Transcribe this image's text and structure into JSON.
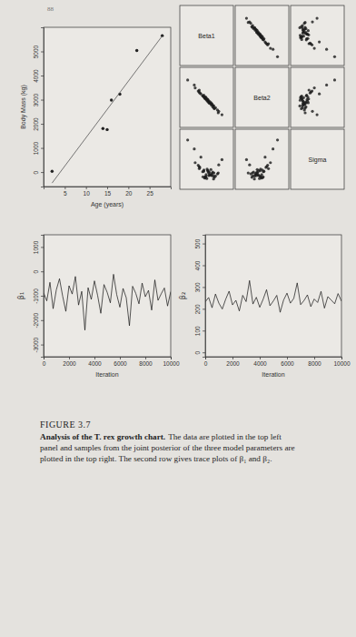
{
  "page_number": "88",
  "chart_data": [
    {
      "type": "scatter",
      "x_label": "Age (years)",
      "y_label": "Body Mass (kg)",
      "xlim": [
        0,
        30
      ],
      "ylim": [
        -600,
        6000
      ],
      "xticks": [
        5,
        10,
        15,
        20,
        25
      ],
      "yticks": [
        0,
        1000,
        2000,
        3000,
        4000,
        5000
      ],
      "series": [
        {
          "type": "scatter",
          "marker": "circle",
          "color": "#222222",
          "x": [
            2,
            14,
            15,
            16,
            18,
            22,
            28
          ],
          "values": [
            29.9,
            1807,
            1761,
            2984,
            3230,
            5040,
            5654
          ]
        },
        {
          "type": "line",
          "line_style": "solid",
          "color": "#555555",
          "x": [
            2,
            28
          ],
          "values": [
            -454,
            5643
          ]
        }
      ]
    },
    {
      "type": "scatter_matrix",
      "tick_labels": false,
      "color": "#1a1a1a",
      "marker": "circle",
      "variables": [
        {
          "name": "Beta1",
          "lim": [
            -2500,
            500
          ],
          "samples": [
            -880,
            -1220,
            -610,
            -1420,
            -390,
            -1080,
            -760,
            -1640,
            -350,
            -1070,
            -740,
            -930,
            -1320,
            -500,
            -900,
            -1410,
            -1110,
            -320,
            -830,
            -1160,
            -1040,
            -660,
            -1690,
            -820,
            -560,
            -1150,
            -690,
            -1380,
            -990,
            -140,
            -1030,
            -850,
            -1470,
            -620,
            -940,
            -1200,
            -590,
            -970,
            -720,
            -2060
          ]
        },
        {
          "name": "Beta2",
          "lim": [
            150,
            340
          ],
          "samples": [
            234,
            250,
            218,
            262,
            205,
            241,
            228,
            275,
            196,
            247,
            221,
            238,
            256,
            212,
            230,
            268,
            243,
            201,
            226,
            252,
            239,
            215,
            284,
            231,
            209,
            246,
            223,
            259,
            236,
            190,
            244,
            227,
            265,
            219,
            233,
            249,
            211,
            240,
            225,
            300
          ]
        },
        {
          "name": "Sigma",
          "lim": [
            300,
            1700
          ],
          "samples": [
            620,
            710,
            540,
            830,
            660,
            590,
            760,
            920,
            680,
            570,
            640,
            730,
            1050,
            610,
            690,
            780,
            560,
            870,
            650,
            720,
            600,
            700,
            1240,
            630,
            580,
            750,
            670,
            810,
            550,
            990,
            640,
            700,
            860,
            610,
            740,
            590,
            680,
            770,
            620,
            1450
          ]
        }
      ]
    },
    {
      "type": "line",
      "x_label": "Iteration",
      "y_label": "β₁",
      "color": "#111111",
      "xlim": [
        0,
        10000
      ],
      "ylim": [
        -3500,
        1500
      ],
      "xticks": [
        0,
        2000,
        4000,
        6000,
        8000,
        10000
      ],
      "yticks": [
        -3000,
        -2000,
        -1000,
        0,
        1000
      ],
      "x": [
        0,
        250,
        500,
        750,
        1000,
        1250,
        1500,
        1750,
        2000,
        2250,
        2500,
        2750,
        3000,
        3250,
        3500,
        3750,
        4000,
        4250,
        4500,
        4750,
        5000,
        5250,
        5500,
        5750,
        6000,
        6250,
        6500,
        6750,
        7000,
        7250,
        7500,
        7750,
        8000,
        8250,
        8500,
        8750,
        9000,
        9250,
        9500,
        9750,
        10000
      ],
      "values": [
        -880,
        -1210,
        -450,
        -1530,
        -760,
        -300,
        -1020,
        -1640,
        -590,
        -930,
        -210,
        -1380,
        -820,
        -2410,
        -670,
        -1150,
        -390,
        -990,
        -1720,
        -540,
        -860,
        -1290,
        -120,
        -950,
        -1470,
        -700,
        -1080,
        -2230,
        -610,
        -900,
        -1330,
        -480,
        -1040,
        -780,
        -1590,
        -350,
        -1190,
        -920,
        -680,
        -1420,
        -830
      ]
    },
    {
      "type": "line",
      "x_label": "Iteration",
      "y_label": "β₂",
      "color": "#111111",
      "xlim": [
        0,
        10000
      ],
      "ylim": [
        -20,
        540
      ],
      "xticks": [
        0,
        2000,
        4000,
        6000,
        8000,
        10000
      ],
      "yticks": [
        0,
        100,
        200,
        300,
        400,
        500
      ],
      "x": [
        0,
        250,
        500,
        750,
        1000,
        1250,
        1500,
        1750,
        2000,
        2250,
        2500,
        2750,
        3000,
        3250,
        3500,
        3750,
        4000,
        4250,
        4500,
        4750,
        5000,
        5250,
        5500,
        5750,
        6000,
        6250,
        6500,
        6750,
        7000,
        7250,
        7500,
        7750,
        8000,
        8250,
        8500,
        8750,
        9000,
        9250,
        9500,
        9750,
        10000
      ],
      "values": [
        232,
        252,
        205,
        268,
        226,
        199,
        244,
        281,
        218,
        239,
        190,
        262,
        233,
        330,
        222,
        253,
        207,
        244,
        288,
        214,
        236,
        262,
        184,
        240,
        272,
        226,
        248,
        319,
        219,
        238,
        264,
        210,
        245,
        229,
        280,
        203,
        256,
        240,
        223,
        270,
        235
      ]
    }
  ],
  "caption": {
    "label": "FIGURE 3.7",
    "title": "Analysis of the T. rex growth chart.",
    "text_lines": [
      "The data are plotted in the top left",
      "panel and samples from the joint posterior of the three model parameters are",
      "plotted in the top right. The second row gives trace plots of β₁ and β₂."
    ]
  }
}
